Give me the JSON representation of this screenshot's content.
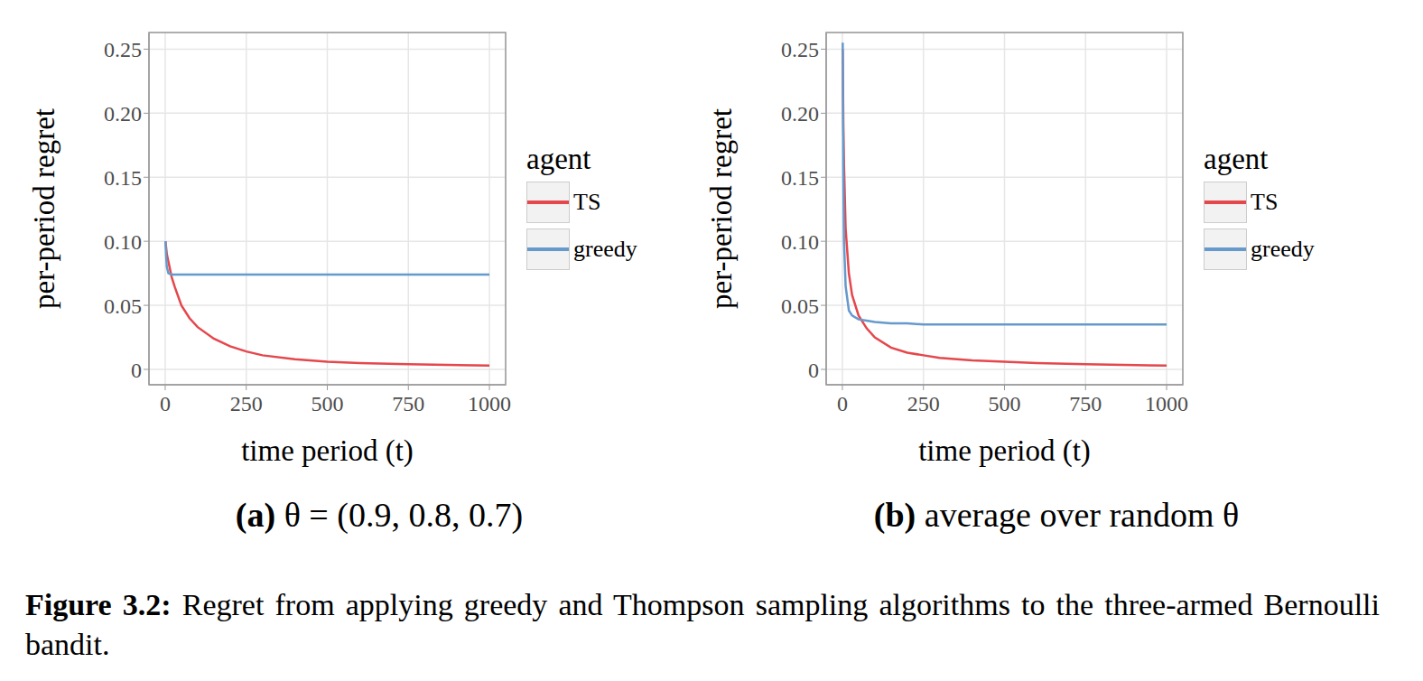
{
  "chart_data": [
    {
      "type": "line",
      "panel_label": "(a)",
      "title": "θ = (0.9, 0.8, 0.7)",
      "x_label": "time period (t)",
      "y_label": "per-period regret",
      "legend_title": "agent",
      "legend": "right",
      "grid": true,
      "xlim": [
        -50,
        1050
      ],
      "xticks": [
        0,
        250,
        500,
        750,
        1000
      ],
      "ylim": [
        -0.012,
        0.263
      ],
      "yticks": [
        0,
        0.05,
        {
          "value": 0.1,
          "label": "0.10"
        },
        0.15,
        {
          "value": 0.2,
          "label": "0.20"
        },
        0.25
      ],
      "x": [
        1,
        3,
        5,
        10,
        20,
        30,
        50,
        75,
        100,
        150,
        200,
        250,
        300,
        400,
        500,
        600,
        750,
        1000
      ],
      "series": [
        {
          "name": "TS",
          "color": "#e4474c",
          "values": [
            0.1,
            0.095,
            0.09,
            0.084,
            0.072,
            0.064,
            0.05,
            0.04,
            0.033,
            0.024,
            0.018,
            0.014,
            0.011,
            0.008,
            0.006,
            0.005,
            0.004,
            0.003
          ]
        },
        {
          "name": "greedy",
          "color": "#6699cc",
          "values": [
            0.1,
            0.088,
            0.08,
            0.075,
            0.074,
            0.074,
            0.074,
            0.074,
            0.074,
            0.074,
            0.074,
            0.074,
            0.074,
            0.074,
            0.074,
            0.074,
            0.074,
            0.074
          ]
        }
      ]
    },
    {
      "type": "line",
      "panel_label": "(b)",
      "title": "average over random θ",
      "x_label": "time period (t)",
      "y_label": "per-period regret",
      "legend_title": "agent",
      "legend": "right",
      "grid": true,
      "xlim": [
        -50,
        1050
      ],
      "xticks": [
        0,
        250,
        500,
        750,
        1000
      ],
      "ylim": [
        -0.012,
        0.263
      ],
      "yticks": [
        0,
        0.05,
        {
          "value": 0.1,
          "label": "0.10"
        },
        0.15,
        {
          "value": 0.2,
          "label": "0.20"
        },
        0.25
      ],
      "x": [
        1,
        3,
        5,
        10,
        20,
        30,
        50,
        75,
        100,
        150,
        200,
        250,
        300,
        400,
        500,
        600,
        750,
        1000
      ],
      "series": [
        {
          "name": "TS",
          "color": "#e4474c",
          "values": [
            0.25,
            0.19,
            0.16,
            0.11,
            0.075,
            0.058,
            0.042,
            0.032,
            0.025,
            0.017,
            0.013,
            0.011,
            0.009,
            0.007,
            0.006,
            0.005,
            0.004,
            0.003
          ]
        },
        {
          "name": "greedy",
          "color": "#6699cc",
          "values": [
            0.255,
            0.15,
            0.1,
            0.065,
            0.046,
            0.042,
            0.039,
            0.038,
            0.037,
            0.036,
            0.036,
            0.035,
            0.035,
            0.035,
            0.035,
            0.035,
            0.035,
            0.035
          ]
        }
      ]
    }
  ],
  "figure_caption": {
    "label": "Figure 3.2:",
    "text": "Regret from applying greedy and Thompson sampling algorithms to the three-armed Bernoulli bandit."
  }
}
